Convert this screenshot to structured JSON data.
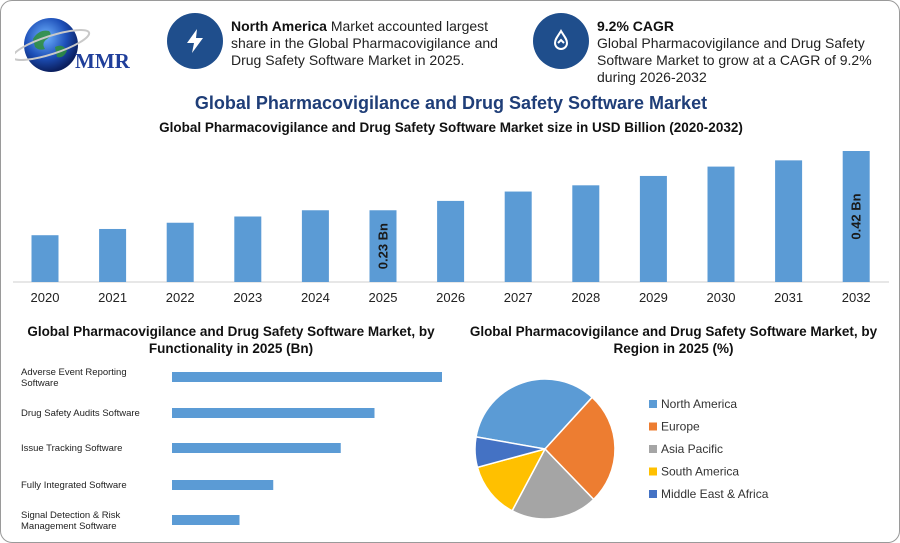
{
  "logo": {
    "text": "MMR"
  },
  "info": {
    "highlight_1": "North America",
    "text_1": " Market accounted largest share in the Global Pharmacovigilance and Drug Safety Software Market in 2025.",
    "highlight_2": "9.2% CAGR",
    "text_2": "Global Pharmacovigilance and Drug Safety Software Market to grow at a CAGR of 9.2% during 2026-2032"
  },
  "titles": {
    "main": "Global Pharmacovigilance and Drug Safety Software Market",
    "sub": "Global Pharmacovigilance and Drug Safety Software Market size in USD Billion (2020-2032)",
    "functionality": "Global Pharmacovigilance and Drug Safety Software Market, by Functionality in 2025 (Bn)",
    "region": "Global Pharmacovigilance and Drug Safety Software Market, by Region in 2025 (%)"
  },
  "chart_data": [
    {
      "type": "bar",
      "categories": [
        "2020",
        "2021",
        "2022",
        "2023",
        "2024",
        "2025",
        "2026",
        "2027",
        "2028",
        "2029",
        "2030",
        "2031",
        "2032"
      ],
      "values": [
        0.15,
        0.17,
        0.19,
        0.21,
        0.23,
        0.23,
        0.26,
        0.29,
        0.31,
        0.34,
        0.37,
        0.39,
        0.42
      ],
      "data_labels": [
        {
          "index": 5,
          "text": "0.23 Bn"
        },
        {
          "index": 12,
          "text": "0.42 Bn"
        }
      ],
      "ylim": [
        0,
        0.42
      ],
      "grid": false,
      "color": "#5b9bd5"
    },
    {
      "type": "bar",
      "orientation": "horizontal",
      "categories": [
        "Adverse Event Reporting Software",
        "Drug Safety Audits Software",
        "Issue Tracking Software",
        "Fully Integrated Software",
        "Signal Detection & Risk Management Software"
      ],
      "category_lines": [
        [
          "Adverse Event Reporting",
          "Software"
        ],
        [
          "Drug Safety Audits Software"
        ],
        [
          "Issue Tracking Software"
        ],
        [
          "Fully Integrated Software"
        ],
        [
          "Signal Detection & Risk",
          "Management Software"
        ]
      ],
      "values": [
        0.08,
        0.06,
        0.05,
        0.03,
        0.02
      ],
      "xlim": [
        0,
        0.08
      ],
      "color": "#5b9bd5"
    },
    {
      "type": "pie",
      "labels": [
        "North America",
        "Europe",
        "Asia Pacific",
        "South America",
        "Middle East & Africa"
      ],
      "values": [
        34,
        26,
        20,
        13,
        7
      ],
      "colors": [
        "#5b9bd5",
        "#ed7d31",
        "#a5a5a5",
        "#ffc000",
        "#4472c4"
      ],
      "legend": "right"
    }
  ]
}
